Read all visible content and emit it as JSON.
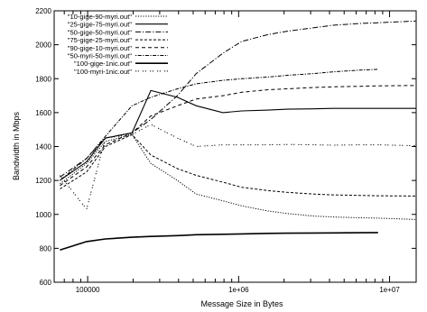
{
  "chart_data": {
    "type": "line",
    "title": "",
    "xlabel": "Message Size in Bytes",
    "ylabel": "Bandwidth in Mbps",
    "xscale": "log",
    "xlim": [
      60000,
      15000000
    ],
    "ylim": [
      600,
      2200
    ],
    "grid": false,
    "legend_position": "top-left",
    "x_ticks": [
      {
        "value": 100000,
        "label": "100000"
      },
      {
        "value": 1000000,
        "label": "1e+06"
      },
      {
        "value": 10000000,
        "label": "1e+07"
      }
    ],
    "y_ticks": [
      {
        "value": 600,
        "label": "600"
      },
      {
        "value": 800,
        "label": "800"
      },
      {
        "value": 1000,
        "label": "1000"
      },
      {
        "value": 1200,
        "label": "1200"
      },
      {
        "value": 1400,
        "label": "1400"
      },
      {
        "value": 1600,
        "label": "1600"
      },
      {
        "value": 1800,
        "label": "1800"
      },
      {
        "value": 2000,
        "label": "2000"
      },
      {
        "value": 2200,
        "label": "2200"
      }
    ],
    "series": [
      {
        "name": "\"10-gige-90-myri.out\"",
        "color": "#000000",
        "dash": "1.2,1.6",
        "width": 1,
        "x": [
          65536,
          98304,
          131072,
          196608,
          262144,
          393216,
          524288,
          786432,
          1048576,
          1572864,
          2097152,
          3145728,
          4194304,
          6291456,
          8388608,
          15000000
        ],
        "y": [
          1180,
          1300,
          1430,
          1470,
          1300,
          1200,
          1120,
          1080,
          1050,
          1020,
          1005,
          990,
          985,
          980,
          978,
          970
        ]
      },
      {
        "name": "\"25-gige-75-myri.out\"",
        "color": "#000000",
        "dash": "",
        "width": 1.1,
        "x": [
          65536,
          98304,
          131072,
          196608,
          262144,
          393216,
          524288,
          786432,
          1048576,
          1572864,
          2097152,
          3145728,
          4194304,
          6291456,
          8388608,
          15000000
        ],
        "y": [
          1200,
          1310,
          1450,
          1480,
          1730,
          1690,
          1640,
          1600,
          1610,
          1615,
          1620,
          1622,
          1625,
          1625,
          1625,
          1625
        ]
      },
      {
        "name": "\"50-gige-50-myri.out\"",
        "color": "#000000",
        "dash": "6,2,1.2,2",
        "width": 1,
        "x": [
          65536,
          98304,
          131072,
          196608,
          262144,
          393216,
          524288,
          786432,
          1048576,
          1572864,
          2097152,
          3145728,
          4194304,
          6291456,
          8388608,
          15000000
        ],
        "y": [
          1220,
          1330,
          1450,
          1480,
          1560,
          1700,
          1830,
          1950,
          2020,
          2060,
          2080,
          2100,
          2115,
          2125,
          2130,
          2140
        ]
      },
      {
        "name": "\"75-gige-25-myri.out\"",
        "color": "#000000",
        "dash": "3,2",
        "width": 1,
        "x": [
          65536,
          98304,
          131072,
          196608,
          262144,
          393216,
          524288,
          786432,
          1048576,
          1572864,
          2097152,
          3145728,
          4194304,
          6291456,
          8388608,
          15000000
        ],
        "y": [
          1150,
          1250,
          1400,
          1470,
          1350,
          1270,
          1230,
          1190,
          1160,
          1140,
          1130,
          1120,
          1115,
          1112,
          1110,
          1108
        ]
      },
      {
        "name": "\"90-gige-10-myri.out\"",
        "color": "#000000",
        "dash": "4,3",
        "width": 1,
        "x": [
          65536,
          98304,
          131072,
          196608,
          262144,
          393216,
          524288,
          786432,
          1048576,
          1572864,
          2097152,
          3145728,
          4194304,
          6291456,
          8388608,
          15000000
        ],
        "y": [
          1170,
          1280,
          1410,
          1480,
          1580,
          1640,
          1680,
          1700,
          1720,
          1735,
          1740,
          1748,
          1752,
          1755,
          1758,
          1760
        ]
      },
      {
        "name": "\"50-myri-50-myri.out\"",
        "color": "#000000",
        "dash": "1.2,1.5,4,1.5",
        "width": 1,
        "x": [
          65536,
          98304,
          131072,
          196608,
          262144,
          393216,
          524288,
          786432,
          1048576,
          1572864,
          2097152,
          3145728,
          4194304,
          6291456,
          8388608
        ],
        "y": [
          1200,
          1330,
          1460,
          1640,
          1690,
          1740,
          1770,
          1790,
          1800,
          1810,
          1820,
          1830,
          1840,
          1850,
          1855
        ]
      },
      {
        "name": "\"100-gige-1nic.out\"",
        "color": "#000000",
        "dash": "",
        "width": 1.6,
        "x": [
          65536,
          98304,
          131072,
          196608,
          262144,
          393216,
          524288,
          786432,
          1048576,
          1572864,
          2097152,
          3145728,
          4194304,
          6291456,
          8388608
        ],
        "y": [
          790,
          840,
          855,
          865,
          870,
          875,
          880,
          883,
          885,
          888,
          889,
          890,
          891,
          892,
          893
        ]
      },
      {
        "name": "\"100-myri-1nic.out\"",
        "color": "#000000",
        "dash": "1.2,1.6,1.2,4",
        "width": 1,
        "x": [
          65536,
          98304,
          131072,
          196608,
          262144,
          393216,
          524288,
          786432,
          1048576,
          1572864,
          2097152,
          3145728,
          4194304,
          6291456,
          8388608,
          15000000
        ],
        "y": [
          1230,
          1030,
          1450,
          1470,
          1530,
          1450,
          1400,
          1410,
          1410,
          1410,
          1412,
          1410,
          1408,
          1410,
          1410,
          1405
        ]
      }
    ]
  }
}
